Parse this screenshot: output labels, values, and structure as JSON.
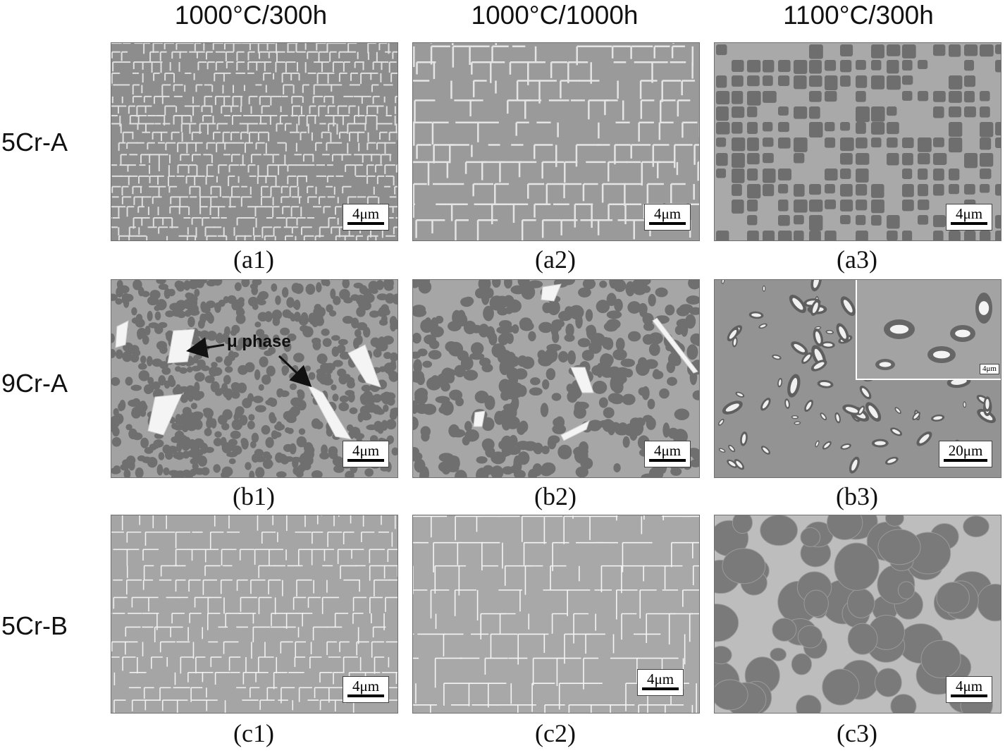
{
  "columns": [
    "1000°C/300h",
    "1000°C/1000h",
    "1100°C/300h"
  ],
  "rows": [
    "5Cr-A",
    "9Cr-A",
    "5Cr-B"
  ],
  "panels": [
    {
      "label": "(a1)",
      "scale": "4μm"
    },
    {
      "label": "(a2)",
      "scale": "4μm"
    },
    {
      "label": "(a3)",
      "scale": "4μm"
    },
    {
      "label": "(b1)",
      "scale": "4μm"
    },
    {
      "label": "(b2)",
      "scale": "4μm"
    },
    {
      "label": "(b3)",
      "scale": "20μm",
      "inset_scale": "4μm"
    },
    {
      "label": "(c1)",
      "scale": "4μm"
    },
    {
      "label": "(c2)",
      "scale": "4μm"
    },
    {
      "label": "(c3)",
      "scale": "4μm"
    }
  ],
  "annotation": "μ phase"
}
